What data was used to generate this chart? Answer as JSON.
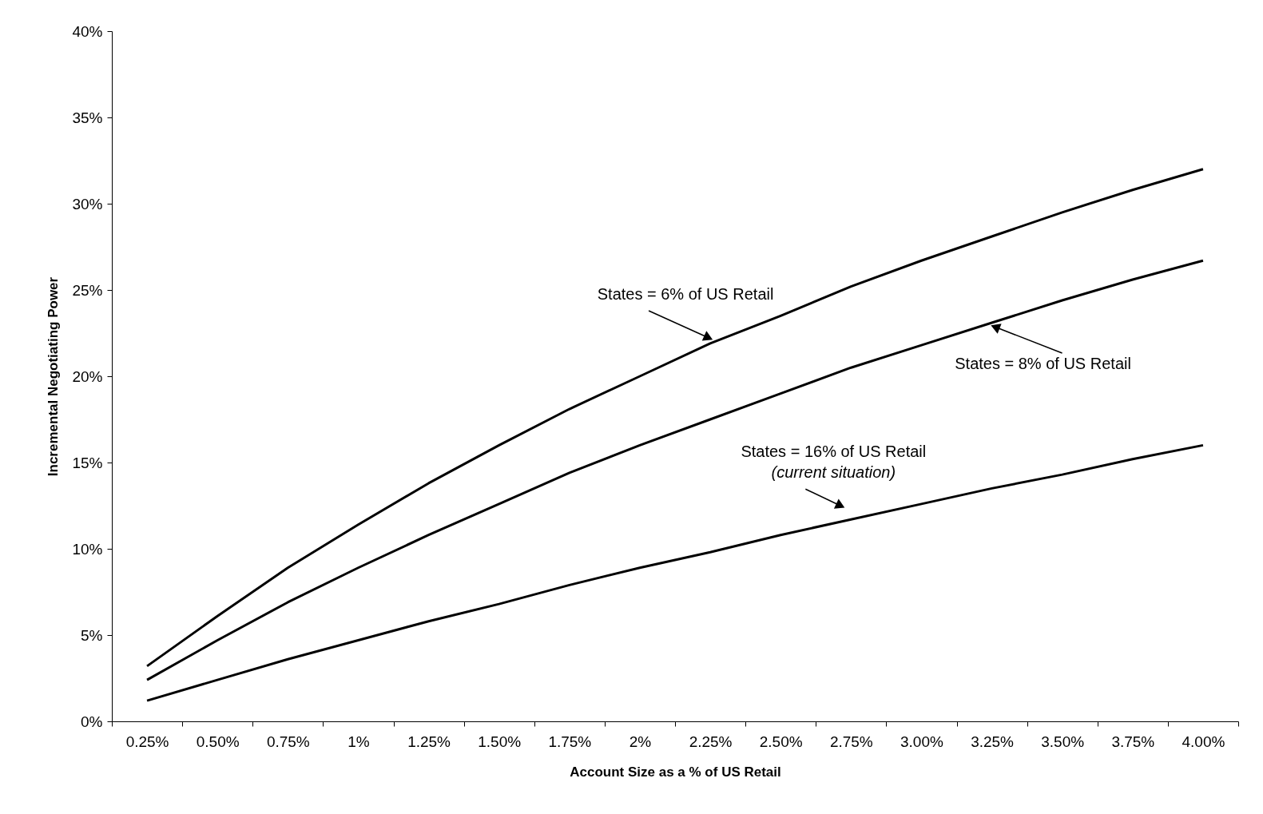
{
  "chart_data": {
    "type": "line",
    "xlabel": "Account Size as a % of US Retail",
    "ylabel": "Incremental Negotiating Power",
    "categories": [
      "0.25%",
      "0.50%",
      "0.75%",
      "1%",
      "1.25%",
      "1.50%",
      "1.75%",
      "2%",
      "2.25%",
      "2.50%",
      "2.75%",
      "3.00%",
      "3.25%",
      "3.50%",
      "3.75%",
      "4.00%"
    ],
    "series": [
      {
        "color": "#000000",
        "values": [
          3.2,
          6.1,
          8.9,
          11.4,
          13.8,
          16.0,
          18.1,
          20.0,
          21.9,
          23.5,
          25.2,
          26.7,
          28.1,
          29.5,
          30.8,
          32.0
        ]
      },
      {
        "color": "#000000",
        "values": [
          2.4,
          4.7,
          6.9,
          8.9,
          10.8,
          12.6,
          14.4,
          16.0,
          17.5,
          19.0,
          20.5,
          21.8,
          23.1,
          24.4,
          25.6,
          26.7
        ]
      },
      {
        "color": "#000000",
        "values": [
          1.2,
          2.4,
          3.6,
          4.7,
          5.8,
          6.8,
          7.9,
          8.9,
          9.8,
          10.8,
          11.7,
          12.6,
          13.5,
          14.3,
          15.2,
          16.0
        ]
      }
    ],
    "ylim": [
      0,
      40
    ],
    "yticks": [
      {
        "value": 0,
        "label": "0%"
      },
      {
        "value": 5,
        "label": "5%"
      },
      {
        "value": 10,
        "label": "10%"
      },
      {
        "value": 15,
        "label": "15%"
      },
      {
        "value": 20,
        "label": "20%"
      },
      {
        "value": 25,
        "label": "25%"
      },
      {
        "value": 30,
        "label": "30%"
      },
      {
        "value": 35,
        "label": "35%"
      },
      {
        "value": 40,
        "label": "40%"
      }
    ],
    "annotations": [
      {
        "text": "States = 6% of US Retail",
        "x": "2.25%",
        "y": 21.9
      },
      {
        "text": "States = 8% of US Retail",
        "x": "3.25%",
        "y": 23.1
      },
      {
        "text": "States = 16% of US Retail\n(current situation)",
        "x": "2.75%",
        "y": 11.7
      }
    ],
    "grid": false,
    "marker": "none",
    "line_style": "solid"
  }
}
